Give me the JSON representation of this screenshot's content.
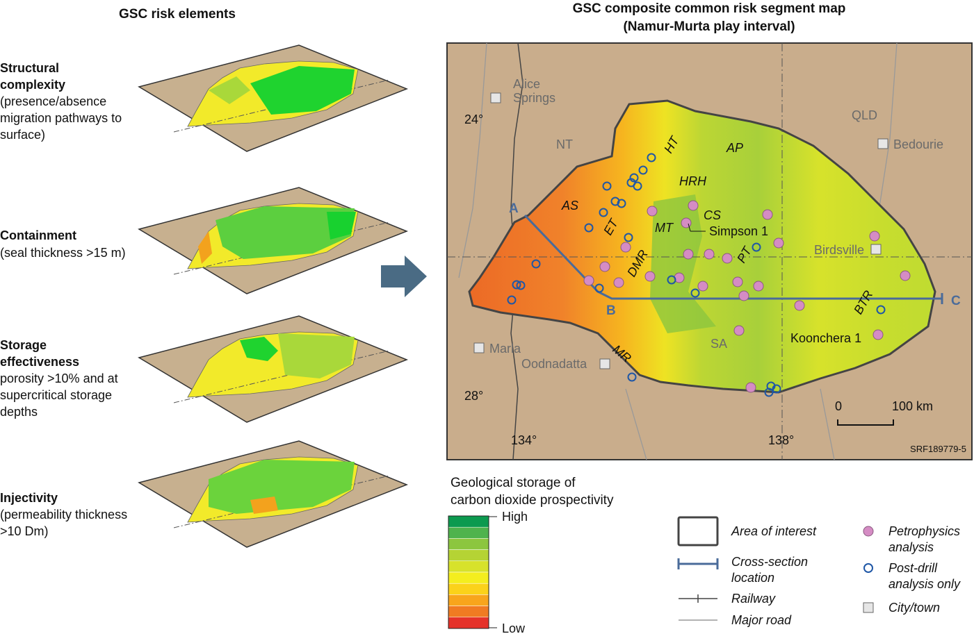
{
  "left_panel": {
    "title": "GSC risk elements",
    "elements": [
      {
        "title": [
          "Structural",
          "complexity"
        ],
        "description": [
          "(presence/absence",
          "migration pathways to",
          "surface)"
        ]
      },
      {
        "title": [
          "Containment"
        ],
        "description": [
          "(seal thickness >15 m)"
        ]
      },
      {
        "title": [
          "Storage",
          "effectiveness"
        ],
        "description": [
          "porosity >10% and at",
          "supercritical storage",
          "depths"
        ]
      },
      {
        "title": [
          "Injectivity"
        ],
        "description": [
          "(permeability thickness",
          ">10 Dm)"
        ]
      }
    ]
  },
  "map": {
    "title": [
      "GSC composite common risk segment map",
      "(Namur-Murta play interval)"
    ],
    "towns": [
      {
        "name": [
          "Alice",
          "Springs"
        ]
      },
      {
        "name": [
          "Bedourie"
        ]
      },
      {
        "name": [
          "Birdsville"
        ]
      },
      {
        "name": [
          "Marla"
        ]
      },
      {
        "name": [
          "Oodnadatta"
        ]
      }
    ],
    "states": [
      "NT",
      "QLD",
      "SA"
    ],
    "latitudes": [
      "24°",
      "28°"
    ],
    "longitudes": [
      "134°",
      "138°"
    ],
    "features": [
      "HT",
      "AP",
      "HRH",
      "AS",
      "CS",
      "MT",
      "ET",
      "DMR",
      "PT",
      "BTR",
      "MR"
    ],
    "wells": [
      "Simpson 1",
      "Koonchera 1"
    ],
    "section_points": [
      "A",
      "B",
      "C"
    ],
    "scale": [
      "0",
      "100 km"
    ],
    "figure_id": "SRF189779-5"
  },
  "legend": {
    "title": [
      "Geological storage of",
      "carbon dioxide prospectivity"
    ],
    "high": "High",
    "low": "Low",
    "colors": [
      "#0c9a4f",
      "#4fb34d",
      "#8cc63f",
      "#b5d334",
      "#d7e22b",
      "#f4ee1e",
      "#fbd21a",
      "#f8a51c",
      "#f07b22",
      "#e5322a"
    ],
    "items": [
      {
        "label": [
          "Area of interest"
        ]
      },
      {
        "label": [
          "Cross-section",
          "location"
        ]
      },
      {
        "label": [
          "Railway"
        ]
      },
      {
        "label": [
          "Major road"
        ]
      },
      {
        "label": [
          "Petrophysics",
          "analysis"
        ]
      },
      {
        "label": [
          "Post-drill",
          "analysis only"
        ]
      },
      {
        "label": [
          "City/town"
        ]
      }
    ]
  }
}
